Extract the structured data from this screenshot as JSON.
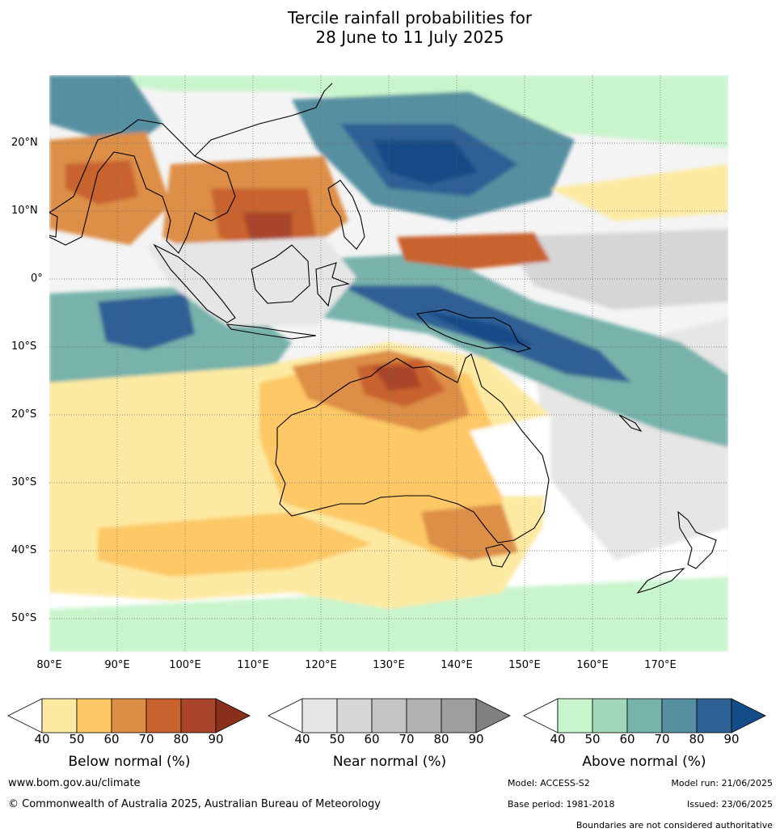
{
  "title_line1": "Tercile rainfall probabilities for",
  "title_line2": "28 June to 11 July 2025",
  "lat_labels": [
    "20°N",
    "10°N",
    "0°",
    "10°S",
    "20°S",
    "30°S",
    "40°S",
    "50°S"
  ],
  "lon_labels": [
    "80°E",
    "90°E",
    "100°E",
    "110°E",
    "120°E",
    "130°E",
    "140°E",
    "150°E",
    "160°E",
    "170°E"
  ],
  "colorbars": {
    "below": {
      "title": "Below normal (%)",
      "colors": [
        "#ffffff",
        "#fdeaa2",
        "#fdc865",
        "#dd8e46",
        "#c8622f",
        "#a9452a",
        "#8a2e1e"
      ]
    },
    "near": {
      "title": "Near normal (%)",
      "colors": [
        "#ffffff",
        "#e6e6e6",
        "#d6d6d6",
        "#c4c4c4",
        "#b2b2b2",
        "#9e9e9e",
        "#808080"
      ]
    },
    "above": {
      "title": "Above normal (%)",
      "colors": [
        "#ffffff",
        "#c9f5cd",
        "#a1d6b9",
        "#77b2ab",
        "#5690a0",
        "#2f6195",
        "#144c87"
      ]
    },
    "ticks": [
      "40",
      "50",
      "60",
      "70",
      "80",
      "90"
    ]
  },
  "footer": {
    "url": "www.bom.gov.au/climate",
    "copyright": "© Commonwealth of Australia 2025, Australian Bureau of Meteorology",
    "model": "Model: ACCESS-S2",
    "model_run": "Model run: 21/06/2025",
    "base_period": "Base period: 1981-2018",
    "issued": "Issued: 23/06/2025",
    "disclaimer": "Boundaries are not considered authoritative"
  },
  "map_regions": [
    {
      "name": "australia-below",
      "category": "below",
      "level": 60
    },
    {
      "name": "north-australia-below",
      "category": "below",
      "level": 80
    },
    {
      "name": "south-china-sea-below",
      "category": "below",
      "level": 80
    },
    {
      "name": "bay-of-bengal-below",
      "category": "below",
      "level": 80
    },
    {
      "name": "philippine-sea-above",
      "category": "above",
      "level": 90
    },
    {
      "name": "new-guinea-above",
      "category": "above",
      "level": 90
    },
    {
      "name": "indian-ocean-above",
      "category": "above",
      "level": 80
    },
    {
      "name": "coral-sea-above",
      "category": "above",
      "level": 70
    },
    {
      "name": "maritime-continent-near",
      "category": "near",
      "level": 50
    },
    {
      "name": "pacific-near",
      "category": "near",
      "level": 50
    }
  ]
}
